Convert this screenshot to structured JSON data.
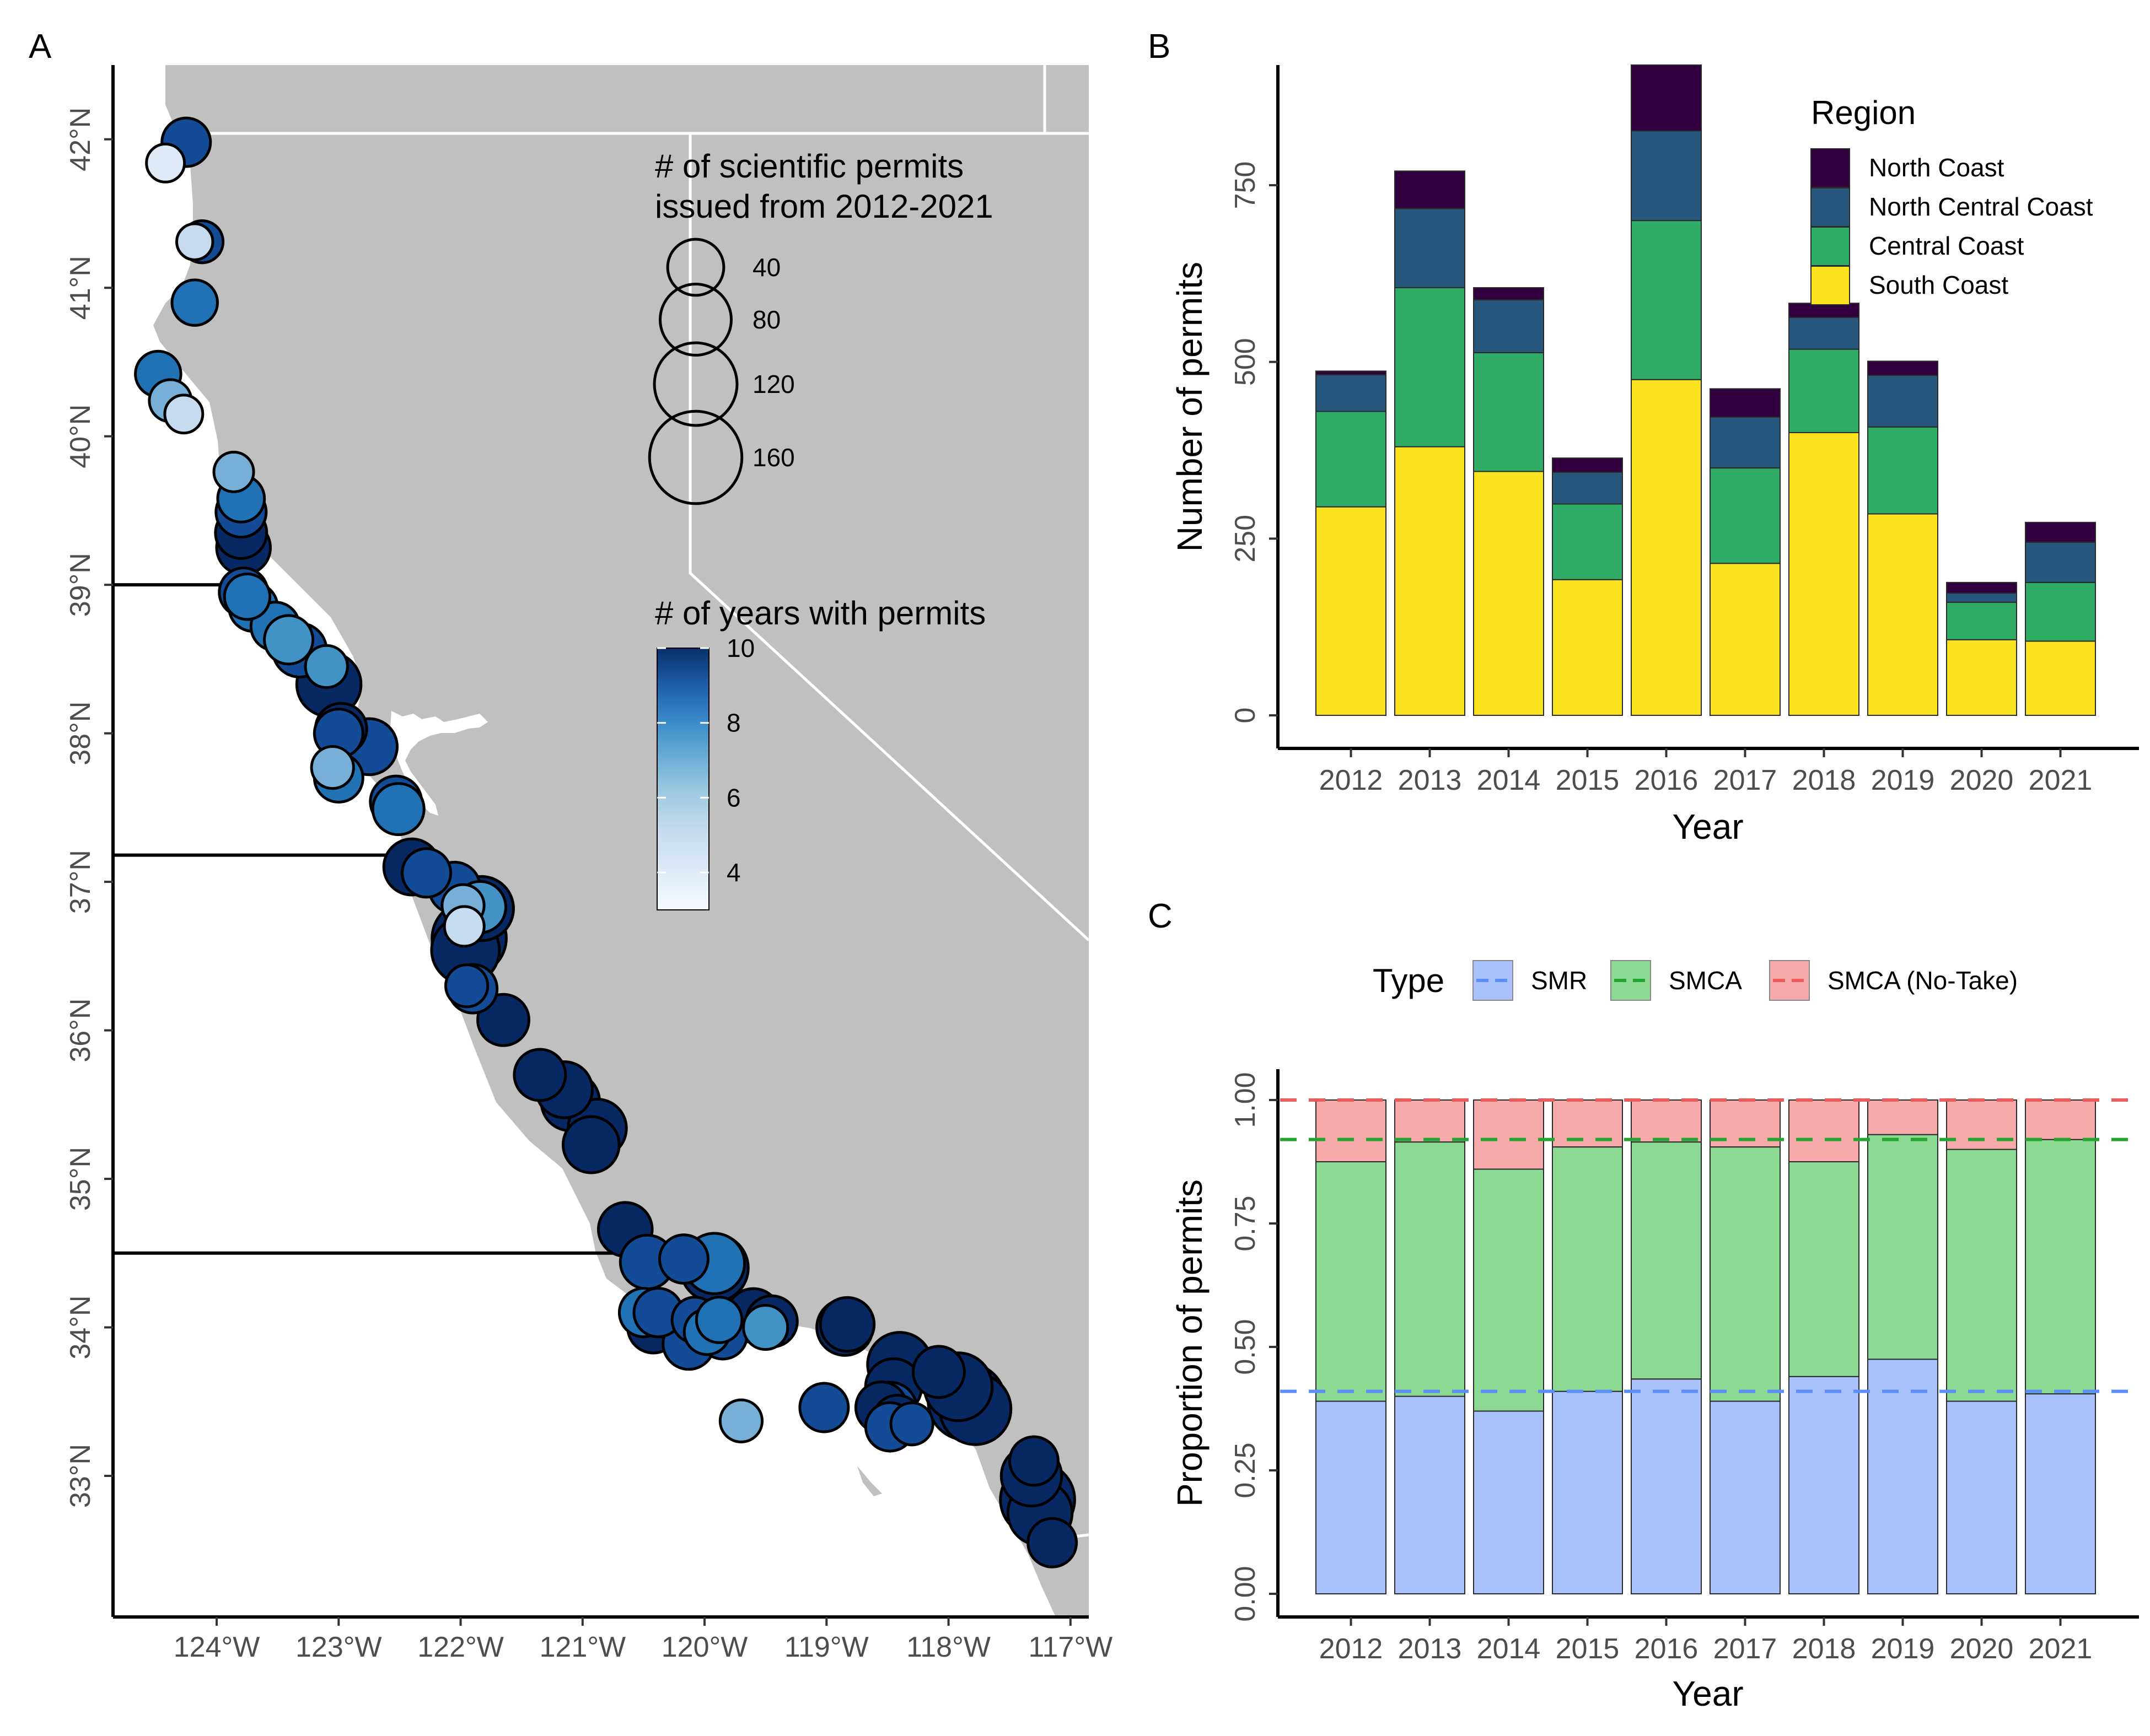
{
  "panels": {
    "a": "A",
    "b": "B",
    "c": "C"
  },
  "colors": {
    "land": "#c0c0c0",
    "ocean": "#ffffff",
    "border": "#ffffff",
    "north_coast": "#32003f",
    "north_central_coast": "#27577c",
    "central_coast": "#2fac66",
    "south_coast": "#fce322",
    "smr": "#a9c1fd",
    "smca": "#8bd993",
    "smca_nt": "#f8aaaa",
    "smr_line": "#5b8ef7",
    "smca_line": "#23a52f",
    "smca_nt_line": "#ef5a5a"
  },
  "chart_data": [
    {
      "type": "scatter",
      "panel": "A",
      "xticks": [
        "124°W",
        "123°W",
        "122°W",
        "121°W",
        "120°W",
        "119°W",
        "118°W",
        "117°W"
      ],
      "yticks": [
        "33°N",
        "34°N",
        "35°N",
        "36°N",
        "37°N",
        "38°N",
        "39°N",
        "40°N",
        "41°N",
        "42°N"
      ],
      "xlim": [
        -124.85,
        -116.85
      ],
      "ylim": [
        32.05,
        42.5
      ],
      "region_boundaries_lat": [
        39.0,
        37.18,
        34.5
      ],
      "size_legend": {
        "title_lines": [
          "# of scientific permits",
          "issued from 2012-2021"
        ],
        "values": [
          40,
          80,
          120,
          160
        ],
        "labels": [
          "40",
          "80",
          "120",
          "160"
        ]
      },
      "color_legend": {
        "title": "# of years with permits",
        "min": 3,
        "max": 10,
        "labels": [
          "10",
          "8",
          "6",
          "4"
        ],
        "values": [
          10,
          8,
          6,
          4
        ]
      },
      "points": [
        {
          "lon": -124.25,
          "lat": 41.98,
          "permits": 25,
          "years": 9
        },
        {
          "lon": -124.42,
          "lat": 41.84,
          "permits": 10,
          "years": 4
        },
        {
          "lon": -124.12,
          "lat": 41.31,
          "permits": 15,
          "years": 9
        },
        {
          "lon": -124.18,
          "lat": 41.31,
          "permits": 8,
          "years": 5
        },
        {
          "lon": -124.18,
          "lat": 40.9,
          "permits": 20,
          "years": 8
        },
        {
          "lon": -124.48,
          "lat": 40.42,
          "permits": 20,
          "years": 8
        },
        {
          "lon": -124.38,
          "lat": 40.24,
          "permits": 15,
          "years": 6
        },
        {
          "lon": -124.27,
          "lat": 40.15,
          "permits": 10,
          "years": 5
        },
        {
          "lon": -123.86,
          "lat": 39.76,
          "permits": 12,
          "years": 6
        },
        {
          "lon": -123.8,
          "lat": 39.58,
          "permits": 22,
          "years": 8
        },
        {
          "lon": -123.8,
          "lat": 39.49,
          "permits": 28,
          "years": 9
        },
        {
          "lon": -123.8,
          "lat": 39.35,
          "permits": 30,
          "years": 10
        },
        {
          "lon": -123.78,
          "lat": 39.25,
          "permits": 35,
          "years": 10
        },
        {
          "lon": -123.78,
          "lat": 38.95,
          "permits": 25,
          "years": 9
        },
        {
          "lon": -123.75,
          "lat": 38.92,
          "permits": 20,
          "years": 8
        },
        {
          "lon": -123.7,
          "lat": 38.85,
          "permits": 25,
          "years": 8
        },
        {
          "lon": -123.52,
          "lat": 38.72,
          "permits": 25,
          "years": 8
        },
        {
          "lon": -123.41,
          "lat": 38.63,
          "permits": 25,
          "years": 7
        },
        {
          "lon": -123.32,
          "lat": 38.56,
          "permits": 35,
          "years": 9
        },
        {
          "lon": -123.1,
          "lat": 38.45,
          "permits": 15,
          "years": 7
        },
        {
          "lon": -123.08,
          "lat": 38.33,
          "permits": 60,
          "years": 10
        },
        {
          "lon": -122.98,
          "lat": 38.03,
          "permits": 30,
          "years": 10
        },
        {
          "lon": -123.0,
          "lat": 38.0,
          "permits": 25,
          "years": 9
        },
        {
          "lon": -122.75,
          "lat": 37.91,
          "permits": 40,
          "years": 9
        },
        {
          "lon": -123.05,
          "lat": 37.77,
          "permits": 15,
          "years": 6
        },
        {
          "lon": -123.0,
          "lat": 37.7,
          "permits": 25,
          "years": 8
        },
        {
          "lon": -122.53,
          "lat": 37.54,
          "permits": 30,
          "years": 9
        },
        {
          "lon": -122.51,
          "lat": 37.49,
          "permits": 30,
          "years": 8
        },
        {
          "lon": -122.4,
          "lat": 37.1,
          "permits": 40,
          "years": 10
        },
        {
          "lon": -122.28,
          "lat": 37.06,
          "permits": 25,
          "years": 9
        },
        {
          "lon": -122.05,
          "lat": 36.96,
          "permits": 30,
          "years": 9
        },
        {
          "lon": -121.84,
          "lat": 36.83,
          "permits": 30,
          "years": 7
        },
        {
          "lon": -121.83,
          "lat": 36.82,
          "permits": 60,
          "years": 10
        },
        {
          "lon": -121.98,
          "lat": 36.84,
          "permits": 15,
          "years": 6
        },
        {
          "lon": -121.97,
          "lat": 36.7,
          "permits": 12,
          "years": 5
        },
        {
          "lon": -121.93,
          "lat": 36.62,
          "permits": 90,
          "years": 10
        },
        {
          "lon": -121.96,
          "lat": 36.54,
          "permits": 70,
          "years": 10
        },
        {
          "lon": -121.95,
          "lat": 36.3,
          "permits": 15,
          "years": 9
        },
        {
          "lon": -121.9,
          "lat": 36.28,
          "permits": 25,
          "years": 9
        },
        {
          "lon": -121.65,
          "lat": 36.07,
          "permits": 30,
          "years": 10
        },
        {
          "lon": -121.35,
          "lat": 35.7,
          "permits": 30,
          "years": 10
        },
        {
          "lon": -121.15,
          "lat": 35.6,
          "permits": 40,
          "years": 10
        },
        {
          "lon": -121.1,
          "lat": 35.52,
          "permits": 45,
          "years": 10
        },
        {
          "lon": -120.88,
          "lat": 35.34,
          "permits": 45,
          "years": 10
        },
        {
          "lon": -120.93,
          "lat": 35.23,
          "permits": 40,
          "years": 10
        },
        {
          "lon": -120.65,
          "lat": 34.66,
          "permits": 35,
          "years": 10
        },
        {
          "lon": -120.47,
          "lat": 34.44,
          "permits": 35,
          "years": 9
        },
        {
          "lon": -120.17,
          "lat": 34.46,
          "permits": 25,
          "years": 9
        },
        {
          "lon": -119.92,
          "lat": 34.4,
          "permits": 70,
          "years": 10
        },
        {
          "lon": -119.92,
          "lat": 34.43,
          "permits": 50,
          "years": 8
        },
        {
          "lon": -120.5,
          "lat": 34.1,
          "permits": 25,
          "years": 8
        },
        {
          "lon": -120.42,
          "lat": 34.0,
          "permits": 30,
          "years": 10
        },
        {
          "lon": -120.38,
          "lat": 34.1,
          "permits": 25,
          "years": 9
        },
        {
          "lon": -120.08,
          "lat": 34.05,
          "permits": 20,
          "years": 9
        },
        {
          "lon": -119.98,
          "lat": 33.97,
          "permits": 20,
          "years": 8
        },
        {
          "lon": -120.13,
          "lat": 33.89,
          "permits": 30,
          "years": 9
        },
        {
          "lon": -119.85,
          "lat": 33.95,
          "permits": 25,
          "years": 9
        },
        {
          "lon": -119.88,
          "lat": 34.05,
          "permits": 20,
          "years": 8
        },
        {
          "lon": -119.6,
          "lat": 34.08,
          "permits": 35,
          "years": 10
        },
        {
          "lon": -119.45,
          "lat": 34.04,
          "permits": 30,
          "years": 10
        },
        {
          "lon": -119.5,
          "lat": 34.0,
          "permits": 18,
          "years": 7
        },
        {
          "lon": -118.85,
          "lat": 34.0,
          "permits": 40,
          "years": 10
        },
        {
          "lon": -118.83,
          "lat": 34.02,
          "permits": 35,
          "years": 10
        },
        {
          "lon": -119.7,
          "lat": 33.37,
          "permits": 15,
          "years": 6
        },
        {
          "lon": -119.02,
          "lat": 33.46,
          "permits": 25,
          "years": 9
        },
        {
          "lon": -118.4,
          "lat": 33.75,
          "permits": 60,
          "years": 10
        },
        {
          "lon": -118.45,
          "lat": 33.6,
          "permits": 40,
          "years": 10
        },
        {
          "lon": -118.55,
          "lat": 33.46,
          "permits": 30,
          "years": 10
        },
        {
          "lon": -118.48,
          "lat": 33.45,
          "permits": 35,
          "years": 9
        },
        {
          "lon": -118.42,
          "lat": 33.38,
          "permits": 25,
          "years": 10
        },
        {
          "lon": -118.48,
          "lat": 33.33,
          "permits": 25,
          "years": 9
        },
        {
          "lon": -118.3,
          "lat": 33.35,
          "permits": 15,
          "years": 9
        },
        {
          "lon": -118.08,
          "lat": 33.7,
          "permits": 30,
          "years": 10
        },
        {
          "lon": -117.92,
          "lat": 33.6,
          "permits": 70,
          "years": 10
        },
        {
          "lon": -117.85,
          "lat": 33.5,
          "permits": 100,
          "years": 10
        },
        {
          "lon": -117.78,
          "lat": 33.45,
          "permits": 80,
          "years": 10
        },
        {
          "lon": -117.3,
          "lat": 33.1,
          "permits": 25,
          "years": 10
        },
        {
          "lon": -117.32,
          "lat": 33.0,
          "permits": 50,
          "years": 10
        },
        {
          "lon": -117.27,
          "lat": 32.84,
          "permits": 90,
          "years": 10
        },
        {
          "lon": -117.25,
          "lat": 32.75,
          "permits": 60,
          "years": 10
        },
        {
          "lon": -117.15,
          "lat": 32.55,
          "permits": 25,
          "years": 10
        }
      ]
    },
    {
      "type": "bar",
      "panel": "B",
      "stacked": true,
      "categories": [
        "2012",
        "2013",
        "2014",
        "2015",
        "2016",
        "2017",
        "2018",
        "2019",
        "2020",
        "2021"
      ],
      "xlabel": "Year",
      "ylabel": "Number of permits",
      "ylim": [
        0,
        920
      ],
      "yticks": [
        0,
        250,
        500,
        750
      ],
      "legend_title": "Region",
      "legend_position": "top-right inside",
      "series": [
        {
          "name": "South Coast",
          "color_key": "south_coast",
          "values": [
            295,
            380,
            345,
            192,
            475,
            215,
            400,
            285,
            107,
            105
          ]
        },
        {
          "name": "Central Coast",
          "color_key": "central_coast",
          "values": [
            135,
            225,
            168,
            107,
            225,
            135,
            118,
            123,
            53,
            83
          ]
        },
        {
          "name": "North Central Coast",
          "color_key": "north_central_coast",
          "values": [
            52,
            112,
            75,
            45,
            127,
            72,
            45,
            73,
            13,
            57
          ]
        },
        {
          "name": "North Coast",
          "color_key": "north_coast",
          "values": [
            5,
            53,
            17,
            20,
            93,
            40,
            20,
            20,
            15,
            28
          ]
        }
      ],
      "legend_order": [
        "North Coast",
        "North Central Coast",
        "Central Coast",
        "South Coast"
      ]
    },
    {
      "type": "bar",
      "panel": "C",
      "stacked": true,
      "categories": [
        "2012",
        "2013",
        "2014",
        "2015",
        "2016",
        "2017",
        "2018",
        "2019",
        "2020",
        "2021"
      ],
      "xlabel": "Year",
      "ylabel": "Proportion of permits",
      "ylim": [
        0,
        1.03
      ],
      "yticks": [
        "0.00",
        "0.25",
        "0.50",
        "0.75",
        "1.00"
      ],
      "legend_title": "Type",
      "legend_position": "top",
      "series": [
        {
          "name": "SMR",
          "color_key": "smr",
          "line_key": "smr_line",
          "values": [
            0.39,
            0.4,
            0.37,
            0.41,
            0.435,
            0.39,
            0.44,
            0.475,
            0.39,
            0.405
          ],
          "overall": 0.41
        },
        {
          "name": "SMCA",
          "color_key": "smca",
          "line_key": "smca_line",
          "values": [
            0.485,
            0.515,
            0.49,
            0.495,
            0.48,
            0.515,
            0.435,
            0.455,
            0.51,
            0.515
          ],
          "overall": 0.92
        },
        {
          "name": "SMCA (No-Take)",
          "color_key": "smca_nt",
          "line_key": "smca_nt_line",
          "values": [
            0.125,
            0.085,
            0.14,
            0.095,
            0.085,
            0.095,
            0.125,
            0.07,
            0.1,
            0.08
          ],
          "overall": 1.0
        }
      ]
    }
  ]
}
